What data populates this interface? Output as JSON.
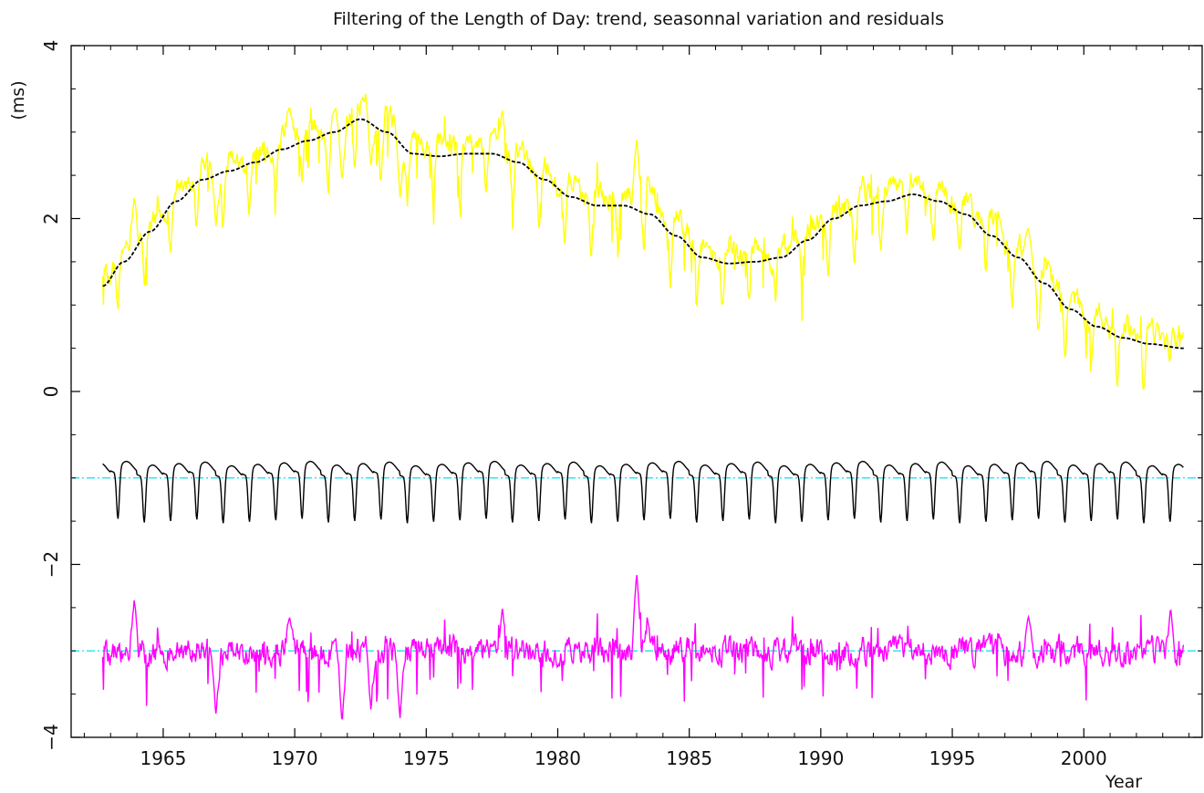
{
  "chart_data": {
    "type": "line",
    "title": "Filtering of the Length of Day: trend, seasonnal variation and residuals",
    "xlabel": "Year",
    "ylabel": "(ms)",
    "xlim": [
      1961.5,
      2004.5
    ],
    "ylim": [
      -4,
      4
    ],
    "xticks": [
      1965,
      1970,
      1975,
      1980,
      1985,
      1990,
      1995,
      2000
    ],
    "yticks": [
      -4,
      -2,
      0,
      2,
      4
    ],
    "grid": false,
    "reference_lines": [
      {
        "y": -1,
        "color": "#00e5ee",
        "style": "dash-dot"
      },
      {
        "y": -3,
        "color": "#00e5ee",
        "style": "dash-dot"
      }
    ],
    "x_range": [
      1962.7,
      2003.8
    ],
    "samples_per_year": 36,
    "colors": {
      "raw": "#ffff00",
      "trend": "#000000",
      "seasonal": "#000000",
      "residual": "#ff00ff",
      "reference": "#00e5ee"
    },
    "series": [
      {
        "role": "trend",
        "style": "dashed",
        "x": [
          1962.7,
          1963.5,
          1964.5,
          1965.5,
          1966.5,
          1967.5,
          1968.5,
          1969.5,
          1970.5,
          1971.5,
          1972.5,
          1973.5,
          1974.5,
          1975.5,
          1976.5,
          1977.5,
          1978.5,
          1979.5,
          1980.5,
          1981.5,
          1982.5,
          1983.5,
          1984.5,
          1985.5,
          1986.5,
          1987.5,
          1988.5,
          1989.5,
          1990.5,
          1991.5,
          1992.5,
          1993.5,
          1994.5,
          1995.5,
          1996.5,
          1997.5,
          1998.5,
          1999.5,
          2000.5,
          2001.5,
          2002.5,
          2003.8
        ],
        "y": [
          1.22,
          1.5,
          1.85,
          2.2,
          2.45,
          2.55,
          2.65,
          2.8,
          2.9,
          3.0,
          3.15,
          3.0,
          2.75,
          2.72,
          2.75,
          2.75,
          2.65,
          2.45,
          2.25,
          2.15,
          2.15,
          2.05,
          1.8,
          1.55,
          1.48,
          1.5,
          1.55,
          1.75,
          2.0,
          2.15,
          2.2,
          2.28,
          2.2,
          2.05,
          1.8,
          1.55,
          1.25,
          0.95,
          0.75,
          0.62,
          0.55,
          0.5
        ]
      },
      {
        "role": "raw",
        "note": "trend plus seasonal plus residual"
      },
      {
        "role": "seasonal",
        "offset": -1,
        "shape": "annual cycle with minimum near -1.6 ms and maxima near -0.6 ms"
      },
      {
        "role": "residual",
        "offset": -3,
        "spikes": [
          {
            "x": 1963.9,
            "y": -2.4
          },
          {
            "x": 1969.8,
            "y": -2.6
          },
          {
            "x": 1977.9,
            "y": -2.5
          },
          {
            "x": 1983.0,
            "y": -2.1
          },
          {
            "x": 1983.4,
            "y": -2.6
          },
          {
            "x": 1997.9,
            "y": -2.6
          },
          {
            "x": 2003.3,
            "y": -2.5
          },
          {
            "x": 1967.0,
            "y": -3.75
          },
          {
            "x": 1971.8,
            "y": -3.85
          },
          {
            "x": 1974.0,
            "y": -3.8
          },
          {
            "x": 1972.9,
            "y": -3.7
          }
        ]
      }
    ]
  }
}
